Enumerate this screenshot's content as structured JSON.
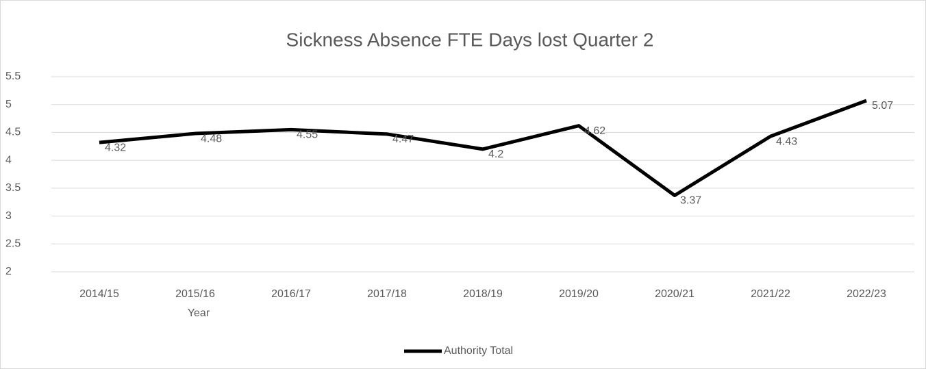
{
  "chart_data": {
    "type": "line",
    "title": "Sickness Absence FTE Days lost Quarter 2",
    "x_label": "Year",
    "categories": [
      "2014/15",
      "2015/16",
      "2016/17",
      "2017/18",
      "2018/19",
      "2019/20",
      "2020/21",
      "2021/22",
      "2022/23"
    ],
    "series": [
      {
        "name": "Authority Total",
        "color": "#000000",
        "values": [
          4.32,
          4.48,
          4.55,
          4.47,
          4.2,
          4.62,
          3.37,
          4.43,
          5.07
        ]
      }
    ],
    "ylim": [
      2,
      5.5
    ],
    "yticks": [
      2,
      2.5,
      3,
      3.5,
      4,
      4.5,
      5,
      5.5
    ],
    "grid": true,
    "legend": "bottom"
  }
}
